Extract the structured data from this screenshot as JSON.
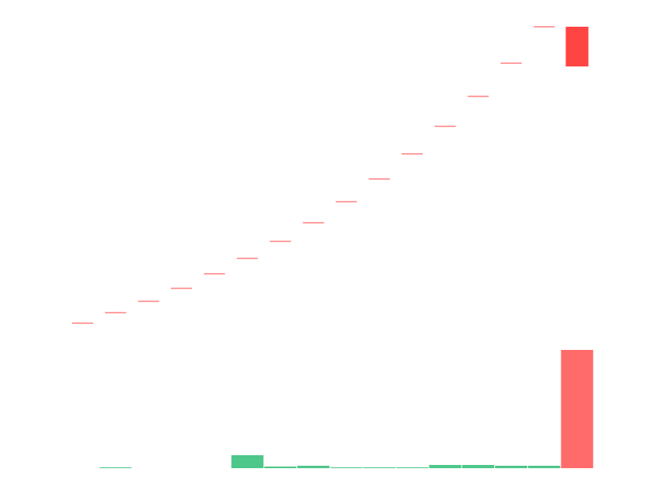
{
  "chart_data": {
    "type": "candlestick",
    "open": [
      92.1,
      93.4,
      94.8,
      96.4,
      98.2,
      100.1,
      102.2,
      104.5,
      107.1,
      109.9,
      113.0,
      116.4,
      120.1,
      124.2,
      128.7,
      128.7
    ],
    "high": [
      92.1,
      93.4,
      94.8,
      96.4,
      98.2,
      100.1,
      102.2,
      104.5,
      107.1,
      109.9,
      113.0,
      116.4,
      120.1,
      124.2,
      128.7,
      128.7
    ],
    "low": [
      92.1,
      93.4,
      94.8,
      96.4,
      98.2,
      100.1,
      102.2,
      104.5,
      107.1,
      109.9,
      113.0,
      116.4,
      120.1,
      124.2,
      128.7,
      123.8
    ],
    "close": [
      92.1,
      93.4,
      94.8,
      96.4,
      98.2,
      100.1,
      102.2,
      104.5,
      107.1,
      109.9,
      113.0,
      116.4,
      120.1,
      124.2,
      128.7,
      123.8
    ],
    "ylim": [
      90,
      130
    ],
    "up_color": "#26a65b",
    "down_color": "#ff4444",
    "volume": [
      0,
      1,
      0,
      0,
      0,
      16,
      2,
      3,
      1,
      1,
      1,
      4,
      4,
      3,
      3,
      146
    ],
    "volume_colors": [
      "#4dc78a",
      "#4dc78a",
      "#4dc78a",
      "#4dc78a",
      "#4dc78a",
      "#4dc78a",
      "#4dc78a",
      "#4dc78a",
      "#4dc78a",
      "#4dc78a",
      "#4dc78a",
      "#4dc78a",
      "#4dc78a",
      "#4dc78a",
      "#4dc78a",
      "#ff6b6b"
    ],
    "volume_lim": [
      0,
      160
    ]
  }
}
